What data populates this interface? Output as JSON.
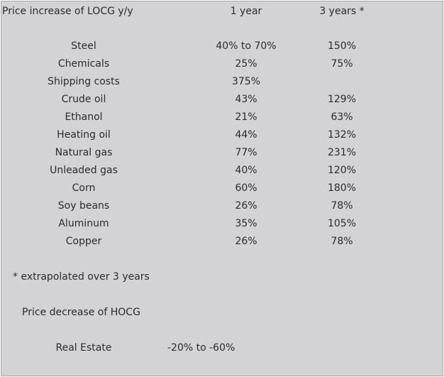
{
  "header": {
    "title": "Price increase of LOCG y/y",
    "col_1year": "1 year",
    "col_3years": "3 years *"
  },
  "rows": [
    {
      "item": "Steel",
      "year1": "40% to 70%",
      "year3": "150%"
    },
    {
      "item": "Chemicals",
      "year1": "25%",
      "year3": "75%"
    },
    {
      "item": "Shipping costs",
      "year1": "375%",
      "year3": ""
    },
    {
      "item": "Crude oil",
      "year1": "43%",
      "year3": "129%"
    },
    {
      "item": "Ethanol",
      "year1": "21%",
      "year3": "63%"
    },
    {
      "item": "Heating oil",
      "year1": "44%",
      "year3": "132%"
    },
    {
      "item": "Natural gas",
      "year1": "77%",
      "year3": "231%"
    },
    {
      "item": "Unleaded gas",
      "year1": "40%",
      "year3": "120%"
    },
    {
      "item": "Corn",
      "year1": "60%",
      "year3": "180%"
    },
    {
      "item": "Soy beans",
      "year1": "26%",
      "year3": "78%"
    },
    {
      "item": "Aluminum",
      "year1": "35%",
      "year3": "105%"
    },
    {
      "item": "Copper",
      "year1": "26%",
      "year3": "78%"
    }
  ],
  "footnote": "* extrapolated over 3 years",
  "decrease": {
    "title": "Price decrease of HOCG",
    "item": "Real Estate",
    "value": "-20% to -60%"
  }
}
